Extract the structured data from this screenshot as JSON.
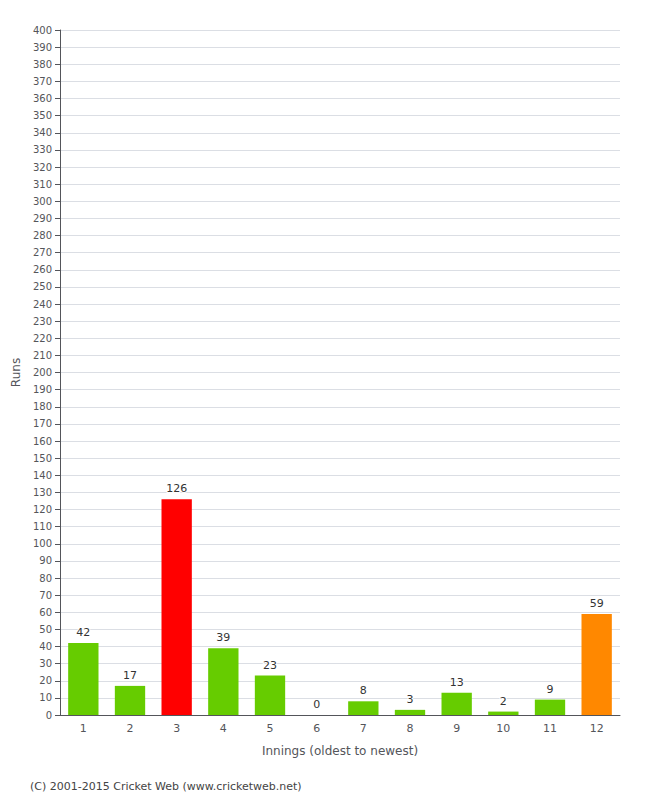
{
  "chart_data": {
    "type": "bar",
    "categories": [
      "1",
      "2",
      "3",
      "4",
      "5",
      "6",
      "7",
      "8",
      "9",
      "10",
      "11",
      "12"
    ],
    "values": [
      42,
      17,
      126,
      39,
      23,
      0,
      8,
      3,
      13,
      2,
      9,
      59
    ],
    "colors": [
      "#66cc00",
      "#66cc00",
      "#ff0000",
      "#66cc00",
      "#66cc00",
      "#66cc00",
      "#66cc00",
      "#66cc00",
      "#66cc00",
      "#66cc00",
      "#66cc00",
      "#ff8800"
    ],
    "xlabel": "Innings (oldest to newest)",
    "ylabel": "Runs",
    "ylim": [
      0,
      400
    ],
    "yticks": [
      0,
      10,
      20,
      30,
      40,
      50,
      60,
      70,
      80,
      90,
      100,
      110,
      120,
      130,
      140,
      150,
      160,
      170,
      180,
      190,
      200,
      210,
      220,
      230,
      240,
      250,
      260,
      270,
      280,
      290,
      300,
      310,
      320,
      330,
      340,
      350,
      360,
      370,
      380,
      390,
      400
    ],
    "grid": true,
    "data_labels": true,
    "annotations": [
      "(C) 2001-2015 Cricket Web (www.cricketweb.net)"
    ]
  }
}
